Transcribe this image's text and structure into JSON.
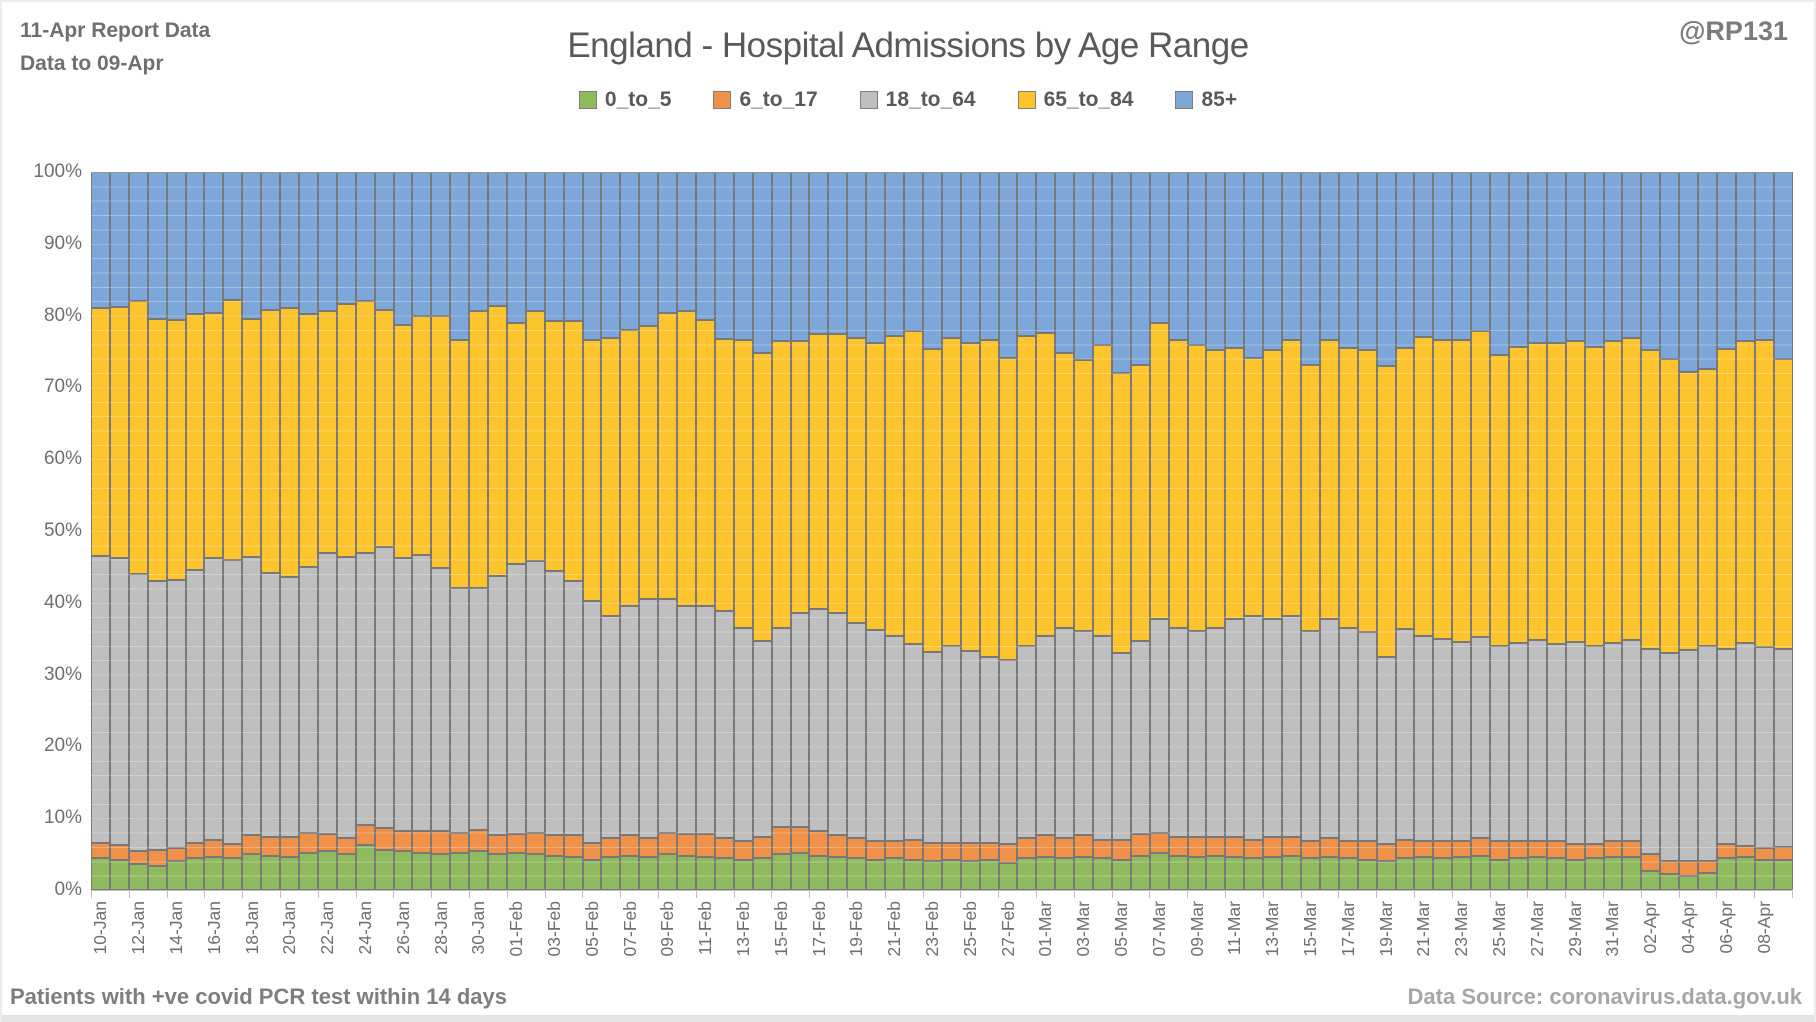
{
  "header": {
    "report_line1": "11-Apr Report Data",
    "report_line2": "Data to 09-Apr",
    "handle": "@RP131"
  },
  "title": "England - Hospital Admissions by Age Range",
  "footer": {
    "left": "Patients with  +ve covid PCR test within 14 days",
    "right": "Data Source: coronavirus.data.gov.uk"
  },
  "axes": {
    "y_ticks": [
      "0%",
      "10%",
      "20%",
      "30%",
      "40%",
      "50%",
      "60%",
      "70%",
      "80%",
      "90%",
      "100%"
    ],
    "x_label_every": 2
  },
  "chart_data": {
    "type": "bar",
    "stacked": true,
    "percent_stacked": true,
    "title": "England - Hospital Admissions by Age Range",
    "xlabel": "",
    "ylabel": "",
    "ylim": [
      0,
      100
    ],
    "y_tick_step": 10,
    "grid": "major-and-minor",
    "legend_position": "top",
    "categories": [
      "10-Jan",
      "11-Jan",
      "12-Jan",
      "13-Jan",
      "14-Jan",
      "15-Jan",
      "16-Jan",
      "17-Jan",
      "18-Jan",
      "19-Jan",
      "20-Jan",
      "21-Jan",
      "22-Jan",
      "23-Jan",
      "24-Jan",
      "25-Jan",
      "26-Jan",
      "27-Jan",
      "28-Jan",
      "29-Jan",
      "30-Jan",
      "31-Jan",
      "01-Feb",
      "02-Feb",
      "03-Feb",
      "04-Feb",
      "05-Feb",
      "06-Feb",
      "07-Feb",
      "08-Feb",
      "09-Feb",
      "10-Feb",
      "11-Feb",
      "12-Feb",
      "13-Feb",
      "14-Feb",
      "15-Feb",
      "16-Feb",
      "17-Feb",
      "18-Feb",
      "19-Feb",
      "20-Feb",
      "21-Feb",
      "22-Feb",
      "23-Feb",
      "24-Feb",
      "25-Feb",
      "26-Feb",
      "27-Feb",
      "28-Feb",
      "01-Mar",
      "02-Mar",
      "03-Mar",
      "04-Mar",
      "05-Mar",
      "06-Mar",
      "07-Mar",
      "08-Mar",
      "09-Mar",
      "10-Mar",
      "11-Mar",
      "12-Mar",
      "13-Mar",
      "14-Mar",
      "15-Mar",
      "16-Mar",
      "17-Mar",
      "18-Mar",
      "19-Mar",
      "20-Mar",
      "21-Mar",
      "22-Mar",
      "23-Mar",
      "24-Mar",
      "25-Mar",
      "26-Mar",
      "27-Mar",
      "28-Mar",
      "29-Mar",
      "30-Mar",
      "31-Mar",
      "01-Apr",
      "02-Apr",
      "03-Apr",
      "04-Apr",
      "05-Apr",
      "06-Apr",
      "07-Apr",
      "08-Apr",
      "09-Apr"
    ],
    "series": [
      {
        "name": "0_to_5",
        "color": "#8fba5d",
        "values": [
          4.5,
          4.2,
          3.6,
          3.4,
          4.0,
          4.4,
          4.6,
          4.4,
          5.0,
          4.8,
          4.6,
          5.2,
          5.4,
          5.0,
          6.2,
          5.6,
          5.4,
          5.2,
          5.0,
          5.2,
          5.4,
          5.0,
          5.2,
          5.0,
          4.8,
          4.6,
          4.2,
          4.6,
          4.8,
          4.6,
          5.0,
          4.8,
          4.6,
          4.4,
          4.2,
          4.4,
          5.0,
          5.2,
          4.8,
          4.6,
          4.4,
          4.2,
          4.4,
          4.2,
          4.0,
          4.2,
          4.0,
          4.2,
          3.8,
          4.4,
          4.6,
          4.4,
          4.6,
          4.4,
          4.2,
          4.8,
          5.2,
          4.8,
          4.6,
          4.8,
          4.6,
          4.4,
          4.6,
          4.8,
          4.4,
          4.6,
          4.4,
          4.2,
          4.0,
          4.4,
          4.6,
          4.4,
          4.6,
          4.8,
          4.2,
          4.4,
          4.6,
          4.4,
          4.2,
          4.4,
          4.6,
          4.6,
          2.6,
          2.2,
          2.0,
          2.4,
          4.4,
          4.6,
          4.2,
          4.2
        ]
      },
      {
        "name": "6_to_17",
        "color": "#ef9148",
        "values": [
          2.0,
          2.0,
          1.8,
          2.2,
          1.8,
          2.2,
          2.4,
          2.0,
          2.6,
          2.6,
          2.8,
          2.8,
          2.4,
          2.2,
          2.8,
          3.0,
          2.8,
          3.0,
          3.2,
          2.8,
          3.0,
          2.6,
          2.6,
          3.0,
          2.8,
          3.0,
          2.4,
          2.6,
          2.8,
          2.6,
          3.0,
          3.0,
          3.2,
          2.8,
          2.6,
          3.0,
          3.8,
          3.6,
          3.4,
          3.0,
          2.8,
          2.6,
          2.4,
          2.8,
          2.6,
          2.4,
          2.6,
          2.4,
          2.6,
          2.8,
          3.0,
          2.8,
          3.0,
          2.6,
          2.8,
          3.0,
          2.8,
          2.6,
          2.8,
          2.6,
          2.8,
          2.6,
          2.8,
          2.6,
          2.4,
          2.6,
          2.4,
          2.6,
          2.4,
          2.6,
          2.2,
          2.4,
          2.2,
          2.4,
          2.6,
          2.4,
          2.2,
          2.4,
          2.2,
          2.0,
          2.2,
          2.2,
          2.4,
          1.8,
          2.0,
          1.6,
          2.0,
          1.6,
          1.6,
          1.8
        ]
      },
      {
        "name": "18_to_64",
        "color": "#bfbfbf",
        "values": [
          40.0,
          40.0,
          38.6,
          37.4,
          37.4,
          38.0,
          39.2,
          39.6,
          38.8,
          36.8,
          36.2,
          37.0,
          39.2,
          39.2,
          38.0,
          39.2,
          38.0,
          38.4,
          36.6,
          34.0,
          33.6,
          36.1,
          37.6,
          37.8,
          36.8,
          35.5,
          33.7,
          31.0,
          32.0,
          33.4,
          32.6,
          31.8,
          31.8,
          31.7,
          29.7,
          27.3,
          27.7,
          29.8,
          31.0,
          31.0,
          30.0,
          29.4,
          28.6,
          27.3,
          26.6,
          27.4,
          26.7,
          25.8,
          25.6,
          26.8,
          27.8,
          29.3,
          28.5,
          28.4,
          26.0,
          26.9,
          29.8,
          29.1,
          28.7,
          29.1,
          30.4,
          31.2,
          30.4,
          30.8,
          29.3,
          30.6,
          29.7,
          29.2,
          26.1,
          29.3,
          28.6,
          28.2,
          27.8,
          28.0,
          27.2,
          27.6,
          28.0,
          27.4,
          28.2,
          27.6,
          27.6,
          28.0,
          28.6,
          29.0,
          29.4,
          30.0,
          27.2,
          28.2,
          28.0,
          27.6
        ]
      },
      {
        "name": "65_to_84",
        "color": "#fdc42e",
        "values": [
          34.5,
          35.0,
          38.0,
          36.6,
          36.2,
          35.6,
          34.2,
          36.2,
          33.2,
          36.6,
          37.4,
          35.2,
          33.6,
          35.2,
          35.0,
          33.0,
          32.5,
          33.4,
          35.2,
          34.6,
          38.6,
          37.7,
          33.6,
          34.9,
          34.9,
          36.2,
          36.3,
          38.7,
          38.4,
          38.0,
          39.8,
          41.1,
          39.8,
          37.9,
          40.1,
          40.1,
          40.0,
          37.9,
          38.3,
          38.9,
          39.7,
          40.0,
          41.8,
          43.6,
          42.1,
          42.9,
          42.9,
          44.2,
          42.1,
          43.2,
          42.2,
          38.3,
          37.7,
          40.5,
          39.0,
          38.4,
          41.2,
          40.1,
          39.8,
          38.7,
          37.7,
          35.9,
          37.4,
          38.4,
          37.0,
          38.8,
          39.0,
          39.2,
          40.5,
          39.2,
          41.6,
          41.6,
          42.0,
          42.6,
          40.5,
          41.3,
          41.4,
          42.0,
          41.8,
          41.7,
          42.0,
          42.1,
          41.6,
          41.0,
          38.7,
          38.6,
          41.7,
          42.1,
          42.8,
          40.4
        ]
      },
      {
        "name": "85+",
        "color": "#7da7d8",
        "values": [
          19.0,
          18.8,
          18.0,
          20.4,
          20.6,
          19.8,
          19.6,
          17.8,
          20.4,
          19.2,
          19.0,
          19.8,
          19.4,
          18.4,
          18.0,
          19.2,
          21.3,
          20.0,
          20.0,
          23.4,
          19.4,
          18.6,
          21.0,
          19.3,
          20.7,
          20.7,
          23.4,
          23.1,
          22.0,
          21.4,
          19.6,
          19.3,
          20.6,
          23.2,
          23.4,
          25.2,
          23.5,
          23.5,
          22.5,
          22.5,
          23.1,
          23.8,
          22.8,
          22.1,
          24.7,
          23.1,
          23.8,
          23.4,
          25.9,
          22.8,
          22.4,
          25.2,
          26.2,
          24.1,
          28.0,
          26.9,
          21.0,
          23.4,
          24.1,
          24.8,
          24.5,
          25.9,
          24.8,
          23.4,
          26.9,
          23.4,
          24.5,
          24.8,
          27.0,
          24.5,
          23.0,
          23.4,
          23.4,
          22.2,
          25.5,
          24.3,
          23.8,
          23.8,
          23.6,
          24.3,
          23.6,
          23.1,
          24.8,
          26.0,
          27.9,
          27.4,
          24.7,
          23.5,
          23.4,
          26.0
        ]
      }
    ]
  },
  "colors": {
    "bar_border": "#787878",
    "grid_major": "#d9d9d9",
    "axis_line": "#bfbfbf",
    "text_dark": "#595959",
    "text_mid": "#6f6f6f"
  }
}
